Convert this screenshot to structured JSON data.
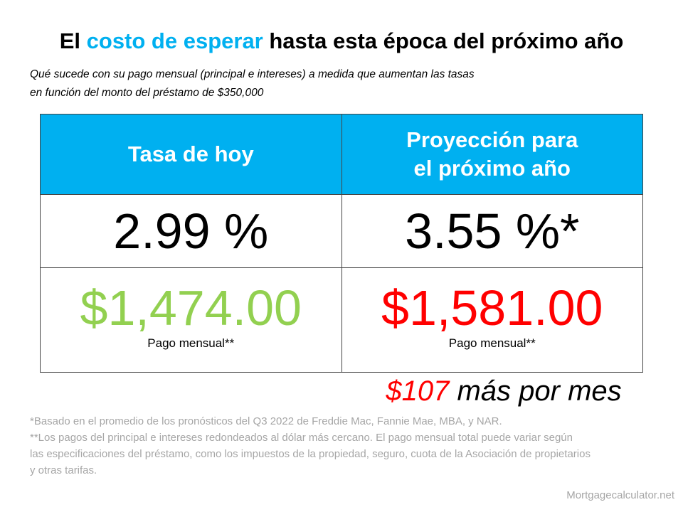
{
  "header": {
    "title": [
      "El",
      "costo de esperar",
      "hasta esta época del próximo año"
    ],
    "subtitle": [
      "Qué sucede con su pago mensual (principal e intereses) a medida que aumentan las tasas",
      "en función del monto del préstamo de $350,000"
    ]
  },
  "table": {
    "columns": [
      [
        "Tasa de hoy"
      ],
      [
        "Proyección para",
        "el próximo año"
      ]
    ],
    "rates": [
      "2.99 %",
      "3.55 %*"
    ],
    "payments": [
      "$1,474.00",
      "$1,581.00"
    ],
    "payment_label": [
      "Pago mensual**",
      "Pago mensual**"
    ]
  },
  "difference": [
    "$107",
    "más por mes"
  ],
  "footnotes": [
    "*Basado en el promedio de los pronósticos del Q3 2022 de Freddie Mac, Fannie Mae, MBA, y NAR.",
    "**Los pagos del principal e intereses redondeados al dólar más cercano. El pago mensual total puede variar según",
    "las especificaciones del préstamo, como los impuestos de la propiedad, seguro, cuota de la Asociación de propietarios",
    "y otras tarifas."
  ],
  "source": "Mortgagecalculator.net"
}
